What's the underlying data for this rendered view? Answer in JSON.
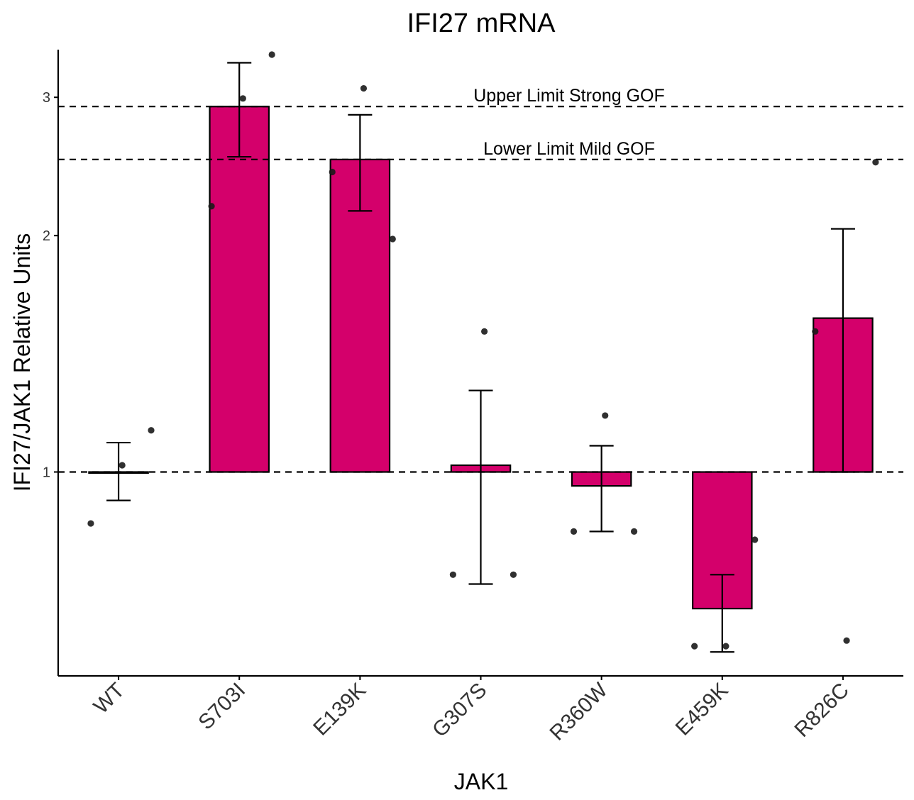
{
  "chart_data": {
    "type": "bar",
    "title": "IFI27 mRNA",
    "xlabel": "JAK1",
    "ylabel": "IFI27/JAK1 Relative Units",
    "y_scale": "log",
    "ylim": [
      0.55,
      3.45
    ],
    "yticks": [
      1,
      2,
      3
    ],
    "ytick_labels": [
      "1",
      "2",
      "3"
    ],
    "baseline": 1,
    "bar_color": "#d4006b",
    "categories": [
      "WT",
      "S703I",
      "E139K",
      "G307S",
      "R360W",
      "E459K",
      "R826C"
    ],
    "values": [
      1.0,
      2.92,
      2.5,
      1.02,
      0.96,
      0.67,
      1.57
    ],
    "error_low": [
      0.92,
      2.52,
      2.15,
      0.72,
      0.84,
      0.59,
      1.0
    ],
    "error_high": [
      1.09,
      3.32,
      2.85,
      1.27,
      1.08,
      0.74,
      2.04
    ],
    "points": [
      [
        0.86,
        1.02,
        1.13
      ],
      [
        2.18,
        2.99,
        3.4
      ],
      [
        2.41,
        3.08,
        1.98
      ],
      [
        0.74,
        1.51,
        0.74
      ],
      [
        0.84,
        1.18,
        0.84
      ],
      [
        0.6,
        0.6,
        0.82
      ],
      [
        1.51,
        0.61,
        2.48
      ]
    ],
    "reference_lines": [
      {
        "value": 2.92,
        "label": "Upper Limit Strong GOF"
      },
      {
        "value": 2.5,
        "label": "Lower Limit Mild GOF"
      },
      {
        "value": 1.0,
        "label": ""
      }
    ],
    "grid": false,
    "legend": "none"
  }
}
